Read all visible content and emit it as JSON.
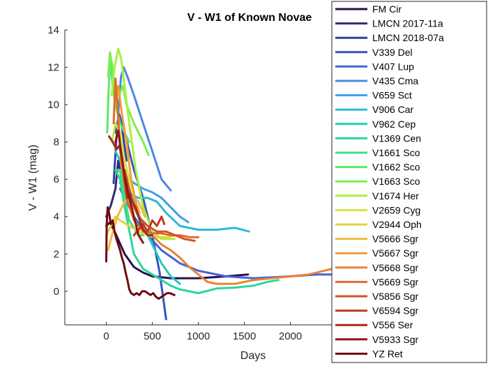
{
  "chart_data": {
    "type": "line",
    "title": "V - W1 of Known Novae",
    "xlabel": "Days",
    "ylabel": "V - W1 (mag)",
    "xlim": [
      -450,
      2450
    ],
    "ylim": [
      -1.8,
      14
    ],
    "xticks": [
      0,
      500,
      1000,
      1500,
      2000
    ],
    "yticks": [
      0,
      2,
      4,
      6,
      8,
      10,
      12,
      14
    ],
    "legend_position": "right, overlapping plot",
    "series": [
      {
        "name": "FM Cir",
        "color": "#2b0f4d",
        "points": [
          [
            0,
            3.5
          ],
          [
            40,
            3.7
          ],
          [
            100,
            3.1
          ],
          [
            200,
            2.0
          ],
          [
            300,
            1.3
          ],
          [
            400,
            1.0
          ],
          [
            500,
            0.8
          ],
          [
            700,
            0.7
          ],
          [
            1000,
            0.7
          ],
          [
            1300,
            0.8
          ],
          [
            1540,
            0.9
          ]
        ]
      },
      {
        "name": "LMCN 2017-11a",
        "color": "#2c2a7a",
        "points": [
          [
            0,
            4.0
          ],
          [
            50,
            4.6
          ],
          [
            100,
            5.5
          ],
          [
            130,
            7.0
          ],
          [
            150,
            6.5
          ],
          [
            180,
            5.5
          ]
        ]
      },
      {
        "name": "LMCN 2018-07a",
        "color": "#2f3f9e",
        "points": [
          [
            80,
            5.8
          ],
          [
            110,
            8.2
          ],
          [
            140,
            9.5
          ],
          [
            170,
            8.8
          ],
          [
            220,
            7.0
          ]
        ]
      },
      {
        "name": "V339 Del",
        "color": "#3655c0",
        "points": [
          [
            100,
            8.5
          ],
          [
            140,
            9.5
          ],
          [
            200,
            8.5
          ],
          [
            300,
            6.5
          ],
          [
            400,
            5.0
          ],
          [
            500,
            3.0
          ],
          [
            580,
            1.0
          ],
          [
            650,
            -1.5
          ]
        ]
      },
      {
        "name": "V407 Lup",
        "color": "#4166d6",
        "points": [
          [
            150,
            5.5
          ],
          [
            200,
            5.0
          ],
          [
            300,
            4.0
          ],
          [
            450,
            3.0
          ],
          [
            600,
            2.2
          ],
          [
            800,
            1.5
          ],
          [
            1000,
            1.1
          ],
          [
            1300,
            0.8
          ],
          [
            1600,
            0.7
          ],
          [
            2000,
            0.8
          ],
          [
            2300,
            0.9
          ],
          [
            2450,
            0.9
          ]
        ]
      },
      {
        "name": "V435 Cma",
        "color": "#4a88e3",
        "points": [
          [
            130,
            9.5
          ],
          [
            160,
            11.5
          ],
          [
            190,
            12.0
          ],
          [
            230,
            11.5
          ],
          [
            300,
            10.5
          ],
          [
            400,
            9.0
          ],
          [
            500,
            7.5
          ],
          [
            600,
            6.0
          ],
          [
            700,
            5.4
          ]
        ]
      },
      {
        "name": "V659 Sct",
        "color": "#3da1e6",
        "points": [
          [
            150,
            5.8
          ],
          [
            200,
            6.2
          ],
          [
            300,
            5.8
          ],
          [
            400,
            5.5
          ],
          [
            500,
            5.3
          ],
          [
            600,
            5.0
          ],
          [
            700,
            4.5
          ],
          [
            800,
            4.0
          ],
          [
            890,
            3.7
          ]
        ]
      },
      {
        "name": "V906 Car",
        "color": "#2eb8d8",
        "points": [
          [
            180,
            6.0
          ],
          [
            250,
            5.2
          ],
          [
            350,
            5.0
          ],
          [
            450,
            5.0
          ],
          [
            550,
            4.8
          ],
          [
            650,
            4.2
          ],
          [
            800,
            3.5
          ],
          [
            1000,
            3.3
          ],
          [
            1200,
            3.3
          ],
          [
            1400,
            3.4
          ],
          [
            1550,
            3.2
          ]
        ]
      },
      {
        "name": "V962 Cep",
        "color": "#25c9bf",
        "points": [
          [
            100,
            7.5
          ],
          [
            150,
            7.0
          ],
          [
            250,
            5.5
          ],
          [
            400,
            3.5
          ],
          [
            500,
            2.5
          ],
          [
            600,
            1.5
          ],
          [
            700,
            0.8
          ],
          [
            800,
            0.4
          ]
        ]
      },
      {
        "name": "V1369 Cen",
        "color": "#2bd6a0",
        "points": [
          [
            100,
            6.5
          ],
          [
            150,
            6.0
          ],
          [
            200,
            4.5
          ],
          [
            300,
            2.0
          ],
          [
            400,
            1.2
          ],
          [
            500,
            0.9
          ],
          [
            600,
            0.6
          ],
          [
            700,
            0.3
          ],
          [
            800,
            0.1
          ],
          [
            900,
            0.0
          ],
          [
            1000,
            -0.1
          ],
          [
            1200,
            0.15
          ],
          [
            1400,
            0.2
          ],
          [
            1600,
            0.3
          ],
          [
            1750,
            0.5
          ],
          [
            1870,
            0.6
          ]
        ]
      },
      {
        "name": "V1661 Sco",
        "color": "#3fe080",
        "points": [
          [
            100,
            6.5
          ],
          [
            150,
            6.5
          ],
          [
            200,
            5.0
          ],
          [
            250,
            3.8
          ],
          [
            300,
            3.4
          ],
          [
            350,
            3.0
          ],
          [
            400,
            3.0
          ]
        ]
      },
      {
        "name": "V1662 Sco",
        "color": "#5ee866",
        "points": [
          [
            10,
            8.5
          ],
          [
            20,
            10.0
          ],
          [
            40,
            12.5
          ],
          [
            70,
            11.0
          ],
          [
            100,
            10.0
          ],
          [
            150,
            9.0
          ],
          [
            250,
            8.0
          ]
        ]
      },
      {
        "name": "V1663 Sco",
        "color": "#7cee52",
        "points": [
          [
            20,
            11.5
          ],
          [
            40,
            12.8
          ],
          [
            70,
            12.0
          ],
          [
            100,
            10.5
          ],
          [
            140,
            10.5
          ],
          [
            180,
            11.0
          ],
          [
            220,
            10.0
          ],
          [
            300,
            9.0
          ],
          [
            400,
            8.0
          ],
          [
            460,
            7.3
          ]
        ]
      },
      {
        "name": "V1674 Her",
        "color": "#a6f045",
        "points": [
          [
            60,
            10.5
          ],
          [
            90,
            12.0
          ],
          [
            130,
            13.0
          ],
          [
            160,
            12.5
          ],
          [
            200,
            11.0
          ],
          [
            250,
            9.0
          ],
          [
            320,
            6.5
          ],
          [
            400,
            4.5
          ],
          [
            500,
            3.2
          ],
          [
            600,
            2.8
          ],
          [
            740,
            2.8
          ]
        ]
      },
      {
        "name": "V2659 Cyg",
        "color": "#cfe63e",
        "points": [
          [
            60,
            8.0
          ],
          [
            100,
            9.0
          ],
          [
            150,
            8.5
          ],
          [
            200,
            7.0
          ],
          [
            250,
            6.0
          ],
          [
            300,
            5.2
          ]
        ]
      },
      {
        "name": "V2944 Oph",
        "color": "#e8d03c",
        "points": [
          [
            0,
            3.0
          ],
          [
            50,
            3.5
          ],
          [
            100,
            4.0
          ],
          [
            150,
            3.8
          ],
          [
            250,
            3.5
          ],
          [
            350,
            3.2
          ],
          [
            450,
            3.0
          ],
          [
            550,
            2.9
          ],
          [
            650,
            2.9
          ],
          [
            760,
            3.0
          ]
        ]
      },
      {
        "name": "V5666 Sgr",
        "color": "#f2b93a",
        "points": [
          [
            20,
            2.2
          ],
          [
            60,
            3.0
          ],
          [
            120,
            4.0
          ],
          [
            200,
            4.8
          ],
          [
            280,
            5.1
          ],
          [
            350,
            4.8
          ],
          [
            420,
            4.0
          ]
        ]
      },
      {
        "name": "V5667 Sgr",
        "color": "#f29c36",
        "points": [
          [
            100,
            10.2
          ],
          [
            130,
            11.0
          ],
          [
            170,
            9.5
          ],
          [
            220,
            8.0
          ],
          [
            270,
            6.0
          ],
          [
            320,
            4.8
          ],
          [
            360,
            4.2
          ]
        ]
      },
      {
        "name": "V5668 Sgr",
        "color": "#ec8232",
        "points": [
          [
            400,
            3.5
          ],
          [
            500,
            3.0
          ],
          [
            600,
            2.5
          ],
          [
            700,
            2.2
          ],
          [
            800,
            1.8
          ],
          [
            900,
            1.3
          ],
          [
            1000,
            0.9
          ],
          [
            1100,
            0.5
          ],
          [
            1200,
            0.4
          ],
          [
            1400,
            0.4
          ],
          [
            1600,
            0.6
          ],
          [
            1800,
            0.7
          ],
          [
            2000,
            0.8
          ],
          [
            2200,
            0.9
          ],
          [
            2450,
            1.2
          ]
        ]
      },
      {
        "name": "V5669 Sgr",
        "color": "#e06a2c",
        "points": [
          [
            80,
            9.0
          ],
          [
            100,
            11.4
          ],
          [
            120,
            10.0
          ],
          [
            160,
            7.0
          ],
          [
            220,
            5.0
          ],
          [
            300,
            3.8
          ],
          [
            400,
            3.2
          ],
          [
            500,
            3.1
          ],
          [
            600,
            3.1
          ],
          [
            700,
            3.0
          ],
          [
            800,
            3.0
          ],
          [
            900,
            2.9
          ],
          [
            1000,
            2.9
          ]
        ]
      },
      {
        "name": "V5856 Sgr",
        "color": "#d35226",
        "points": [
          [
            200,
            6.5
          ],
          [
            250,
            5.5
          ],
          [
            300,
            4.5
          ],
          [
            350,
            4.0
          ],
          [
            450,
            3.5
          ],
          [
            550,
            3.2
          ],
          [
            650,
            3.2
          ],
          [
            750,
            3.0
          ],
          [
            850,
            2.8
          ],
          [
            960,
            2.7
          ]
        ]
      },
      {
        "name": "V6594 Sgr",
        "color": "#bf3a1f",
        "points": [
          [
            300,
            3.0
          ],
          [
            350,
            3.3
          ],
          [
            400,
            3.6
          ],
          [
            450,
            3.2
          ],
          [
            500,
            3.8
          ],
          [
            550,
            3.5
          ],
          [
            600,
            4.0
          ],
          [
            630,
            3.6
          ]
        ]
      },
      {
        "name": "V556 Ser",
        "color": "#a62a18",
        "points": [
          [
            30,
            8.3
          ],
          [
            70,
            8.0
          ],
          [
            110,
            7.6
          ],
          [
            140,
            7.8
          ],
          [
            170,
            7.2
          ],
          [
            200,
            6.0
          ],
          [
            230,
            5.0
          ],
          [
            260,
            5.2
          ],
          [
            280,
            4.8
          ],
          [
            320,
            4.5
          ],
          [
            350,
            4.0
          ],
          [
            400,
            3.3
          ],
          [
            450,
            3.0
          ],
          [
            500,
            3.0
          ]
        ]
      },
      {
        "name": "V5933 Sgr",
        "color": "#8b1811",
        "points": [
          [
            100,
            8.0
          ],
          [
            130,
            8.6
          ],
          [
            160,
            7.5
          ],
          [
            200,
            6.2
          ],
          [
            250,
            5.0
          ],
          [
            300,
            4.0
          ],
          [
            350,
            3.0
          ],
          [
            400,
            2.6
          ]
        ]
      },
      {
        "name": "YZ Ret",
        "color": "#6e0a0b",
        "points": [
          [
            0,
            1.6
          ],
          [
            5,
            3.6
          ],
          [
            15,
            4.5
          ],
          [
            30,
            4.2
          ],
          [
            50,
            3.6
          ],
          [
            70,
            3.8
          ],
          [
            90,
            3.2
          ],
          [
            110,
            2.8
          ],
          [
            130,
            2.5
          ],
          [
            150,
            2.2
          ],
          [
            170,
            1.8
          ],
          [
            190,
            1.5
          ],
          [
            210,
            1.0
          ],
          [
            230,
            0.6
          ],
          [
            250,
            0.1
          ],
          [
            270,
            -0.1
          ],
          [
            300,
            -0.2
          ],
          [
            330,
            -0.1
          ],
          [
            360,
            -0.2
          ],
          [
            390,
            0.0
          ],
          [
            420,
            0.0
          ],
          [
            450,
            -0.1
          ],
          [
            480,
            -0.2
          ],
          [
            510,
            -0.1
          ],
          [
            540,
            -0.3
          ],
          [
            570,
            -0.4
          ],
          [
            600,
            -0.3
          ],
          [
            630,
            -0.2
          ],
          [
            660,
            -0.1
          ],
          [
            690,
            -0.1
          ],
          [
            740,
            -0.2
          ]
        ]
      }
    ]
  }
}
